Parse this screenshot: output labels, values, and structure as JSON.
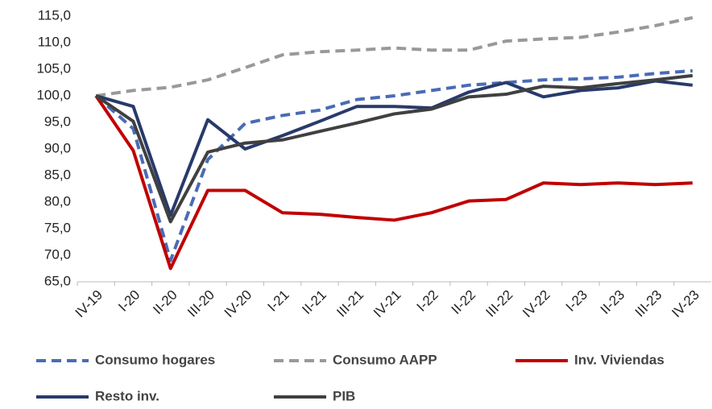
{
  "chart_data": {
    "type": "line",
    "categories": [
      "IV-19",
      "I-20",
      "II-20",
      "III-20",
      "IV-20",
      "I-21",
      "II-21",
      "III-21",
      "IV-21",
      "I-22",
      "II-22",
      "III-22",
      "IV-22",
      "I-23",
      "II-23",
      "III-23",
      "IV-23"
    ],
    "series": [
      {
        "name": "Consumo hogares",
        "color": "#4a6bb5",
        "dashed": true,
        "values": [
          100,
          93.8,
          69,
          88,
          94.8,
          96.3,
          97.3,
          99.3,
          100,
          101,
          102,
          102.5,
          103,
          103.2,
          103.5,
          104.2,
          104.7
        ]
      },
      {
        "name": "Consumo AAPP",
        "color": "#999999",
        "dashed": true,
        "values": [
          100,
          101,
          101.6,
          103,
          105.3,
          107.7,
          108.3,
          108.6,
          109,
          108.6,
          108.6,
          110.3,
          110.7,
          111,
          112,
          113.2,
          114.7
        ]
      },
      {
        "name": "Inv. Viviendas",
        "color": "#c00000",
        "dashed": false,
        "values": [
          100,
          89.7,
          67.5,
          82.2,
          82.2,
          78,
          77.7,
          77.1,
          76.6,
          78,
          80.2,
          80.5,
          83.6,
          83.3,
          83.6,
          83.3,
          83.6
        ]
      },
      {
        "name": "Resto inv.",
        "color": "#283a6b",
        "dashed": false,
        "values": [
          100,
          98,
          77.5,
          95.5,
          90,
          92.5,
          95.2,
          98,
          98,
          97.7,
          100.7,
          102.5,
          99.8,
          101,
          101.5,
          102.8,
          102
        ]
      },
      {
        "name": "PIB",
        "color": "#404040",
        "dashed": false,
        "values": [
          100,
          95.2,
          76.3,
          89.4,
          91.1,
          91.7,
          93.3,
          94.9,
          96.6,
          97.5,
          99.8,
          100.3,
          101.8,
          101.5,
          102.3,
          103,
          103.8
        ]
      }
    ],
    "ylim": [
      65,
      115
    ],
    "yticks": [
      {
        "value": 65,
        "label": "65,0"
      },
      {
        "value": 70,
        "label": "70,0"
      },
      {
        "value": 75,
        "label": "75,0"
      },
      {
        "value": 80,
        "label": "80,0"
      },
      {
        "value": 85,
        "label": "85,0"
      },
      {
        "value": 90,
        "label": "90,0"
      },
      {
        "value": 95,
        "label": "95,0"
      },
      {
        "value": 100,
        "label": "100,0"
      },
      {
        "value": 105,
        "label": "105,0"
      },
      {
        "value": 110,
        "label": "110,0"
      },
      {
        "value": 115,
        "label": "115,0"
      }
    ],
    "grid": false,
    "legend": "bottom"
  }
}
